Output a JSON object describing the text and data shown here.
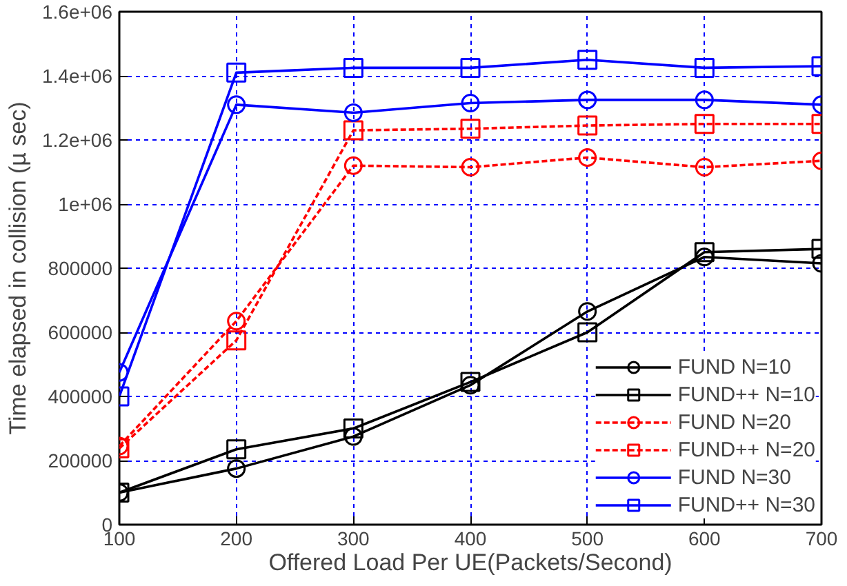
{
  "chart_data": {
    "type": "line",
    "xlabel": "Offered Load Per UE(Packets/Second)",
    "ylabel": "Time elapsed in collision (µ sec)",
    "x": [
      100,
      200,
      300,
      400,
      500,
      600,
      700
    ],
    "xlim": [
      100,
      700
    ],
    "xticks": [
      100,
      200,
      300,
      400,
      500,
      600,
      700
    ],
    "ylim": [
      0,
      1600000
    ],
    "yticks": [
      0,
      200000,
      400000,
      600000,
      800000,
      {
        "value": 1000000,
        "label": "1e+06"
      },
      {
        "value": 1200000,
        "label": "1.2e+06"
      },
      {
        "value": 1400000,
        "label": "1.4e+06"
      },
      {
        "value": 1600000,
        "label": "1.6e+06"
      }
    ],
    "grid": true,
    "legend": "bottom right",
    "series": [
      {
        "name": "FUND N=10",
        "color": "#000000",
        "marker": "circle",
        "line_style": "solid",
        "values": [
          100000,
          175000,
          275000,
          435000,
          665000,
          835000,
          815000
        ]
      },
      {
        "name": "FUND++ N=10",
        "color": "#000000",
        "marker": "square",
        "line_style": "solid",
        "values": [
          100000,
          235000,
          300000,
          445000,
          600000,
          850000,
          860000
        ]
      },
      {
        "name": "FUND N=20",
        "color": "#ff0000",
        "marker": "circle",
        "line_style": "dashed",
        "values": [
          245000,
          635000,
          1120000,
          1115000,
          1145000,
          1115000,
          1135000
        ]
      },
      {
        "name": "FUND++ N=20",
        "color": "#ff0000",
        "marker": "square",
        "line_style": "dashed",
        "values": [
          238000,
          575000,
          1230000,
          1235000,
          1245000,
          1250000,
          1250000
        ]
      },
      {
        "name": "FUND N=30",
        "color": "#0000ff",
        "marker": "circle",
        "line_style": "solid",
        "values": [
          475000,
          1310000,
          1285000,
          1315000,
          1325000,
          1325000,
          1310000
        ]
      },
      {
        "name": "FUND++ N=30",
        "color": "#0000ff",
        "marker": "square",
        "line_style": "solid",
        "values": [
          400000,
          1410000,
          1425000,
          1425000,
          1450000,
          1425000,
          1430000
        ]
      }
    ]
  }
}
